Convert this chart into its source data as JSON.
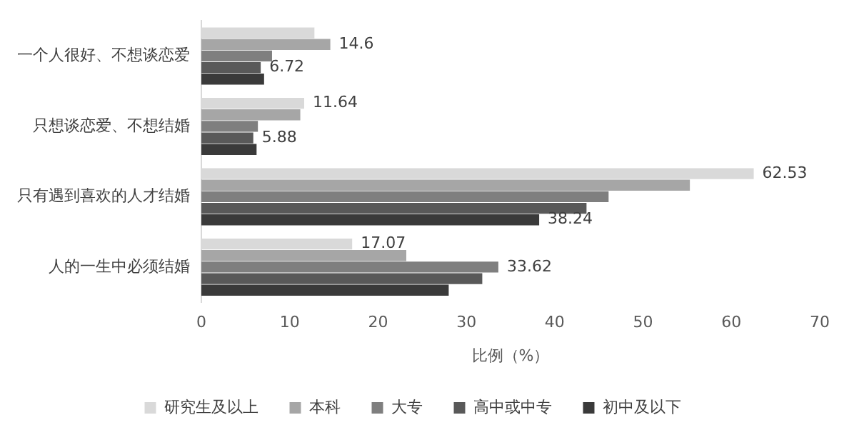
{
  "chart_data": {
    "type": "bar",
    "orientation": "horizontal",
    "xlabel": "比例（%）",
    "categories": [
      "一个人很好、不想谈恋爱",
      "只想谈恋爱、不想结婚",
      "只有遇到喜欢的人才结婚",
      "人的一生中必须结婚"
    ],
    "series": [
      {
        "name": "研究生及以上",
        "color": "#d9d9d9",
        "values": [
          12.8,
          11.64,
          62.53,
          17.07
        ],
        "value_labels": [
          null,
          "11.64",
          "62.53",
          "17.07"
        ]
      },
      {
        "name": "本科",
        "color": "#a6a6a6",
        "values": [
          14.6,
          11.2,
          55.3,
          23.2
        ],
        "value_labels": [
          "14.6",
          null,
          null,
          null
        ]
      },
      {
        "name": "大专",
        "color": "#7f7f7f",
        "values": [
          8.0,
          6.4,
          46.1,
          33.62
        ],
        "value_labels": [
          null,
          null,
          null,
          "33.62"
        ]
      },
      {
        "name": "高中或中专",
        "color": "#595959",
        "values": [
          6.72,
          5.88,
          43.6,
          31.8
        ],
        "value_labels": [
          "6.72",
          "5.88",
          null,
          null
        ]
      },
      {
        "name": "初中及以下",
        "color": "#3a3a3a",
        "values": [
          7.1,
          6.25,
          38.24,
          28.0
        ],
        "value_labels": [
          null,
          null,
          "38.24",
          null
        ]
      }
    ],
    "xlim": [
      0,
      70
    ],
    "xticks": [
      0,
      10,
      20,
      30,
      40,
      50,
      60,
      70
    ],
    "grid": false,
    "legend": "bottom"
  }
}
